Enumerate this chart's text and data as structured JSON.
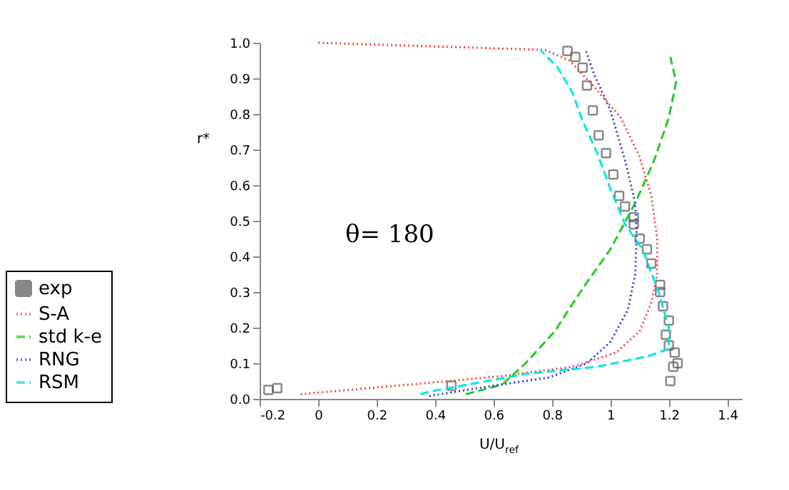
{
  "chart_data": {
    "type": "line",
    "xlabel": "U/U$_{ref}$",
    "ylabel": "r*",
    "annotations": [
      "θ= 180"
    ],
    "xlim": [
      -0.2,
      1.45
    ],
    "ylim": [
      0,
      1.0
    ],
    "xticks": [
      -0.2,
      0,
      0.2,
      0.4,
      0.6,
      0.8,
      1,
      1.2,
      1.4
    ],
    "yticks": [
      {
        "value": 0,
        "label": "0.0"
      },
      0.1,
      0.2,
      0.3,
      0.4,
      0.5,
      0.6,
      0.7,
      0.8,
      0.9,
      {
        "value": 1,
        "label": "1.0"
      }
    ],
    "grid": false,
    "legend": "bottom left",
    "series": [
      {
        "name": "exp",
        "type": "scatter",
        "marker": "square",
        "color": "#555555",
        "x": [
          -0.17,
          -0.14,
          0.456,
          0.853,
          0.88,
          0.905,
          0.92,
          0.94,
          0.96,
          0.985,
          1.01,
          1.03,
          1.05,
          1.08,
          1.08,
          1.1,
          1.125,
          1.14,
          1.17,
          1.17,
          1.18,
          1.2,
          1.19,
          1.2,
          1.22,
          1.23,
          1.215,
          1.205
        ],
        "values": [
          0.025,
          0.03,
          0.037,
          0.977,
          0.96,
          0.93,
          0.88,
          0.81,
          0.74,
          0.69,
          0.63,
          0.57,
          0.54,
          0.51,
          0.49,
          0.45,
          0.42,
          0.38,
          0.32,
          0.3,
          0.26,
          0.22,
          0.18,
          0.15,
          0.13,
          0.1,
          0.09,
          0.05
        ]
      },
      {
        "name": "S-A",
        "line_style": "dotted",
        "marker": "none",
        "color": "#ff4040",
        "x": [
          -0.06,
          0.27,
          0.38,
          0.63,
          0.68,
          0.87,
          1.02,
          1.1,
          1.14,
          1.16,
          1.16,
          1.14,
          1.1,
          1.035,
          0.94,
          0.86,
          0.775,
          0.38,
          0
        ],
        "values": [
          0.013,
          0.037,
          0.045,
          0.064,
          0.07,
          0.09,
          0.13,
          0.19,
          0.27,
          0.35,
          0.45,
          0.57,
          0.68,
          0.79,
          0.88,
          0.95,
          0.98,
          0.99,
          1.0
        ]
      },
      {
        "name": "std k-e",
        "line_style": "dashed",
        "marker": "none",
        "color": "#22cc22",
        "x": [
          0.505,
          0.63,
          0.71,
          0.81,
          0.905,
          1.0,
          1.085,
          1.15,
          1.2,
          1.225,
          1.205
        ],
        "values": [
          0.013,
          0.04,
          0.1,
          0.19,
          0.31,
          0.42,
          0.55,
          0.67,
          0.79,
          0.89,
          0.96
        ]
      },
      {
        "name": "RNG",
        "line_style": "dotted",
        "marker": "none",
        "color": "#3333dd",
        "x": [
          0.38,
          0.545,
          0.79,
          0.92,
          1.0,
          1.06,
          1.085,
          1.09,
          1.085,
          1.05,
          1.0,
          0.945,
          0.915
        ],
        "values": [
          0.008,
          0.03,
          0.06,
          0.1,
          0.16,
          0.25,
          0.35,
          0.46,
          0.55,
          0.67,
          0.81,
          0.91,
          0.98
        ]
      },
      {
        "name": "RSM",
        "line_style": "dashed",
        "marker": "none",
        "color": "#00e5e5",
        "x": [
          0.35,
          0.38,
          0.71,
          0.955,
          1.13,
          1.2,
          1.2,
          1.165,
          1.11,
          1.05,
          1.0,
          0.955,
          0.905,
          0.87,
          0.82,
          0.76
        ],
        "values": [
          0.013,
          0.02,
          0.07,
          0.09,
          0.12,
          0.14,
          0.2,
          0.3,
          0.42,
          0.49,
          0.59,
          0.69,
          0.78,
          0.86,
          0.93,
          0.98
        ]
      }
    ]
  }
}
